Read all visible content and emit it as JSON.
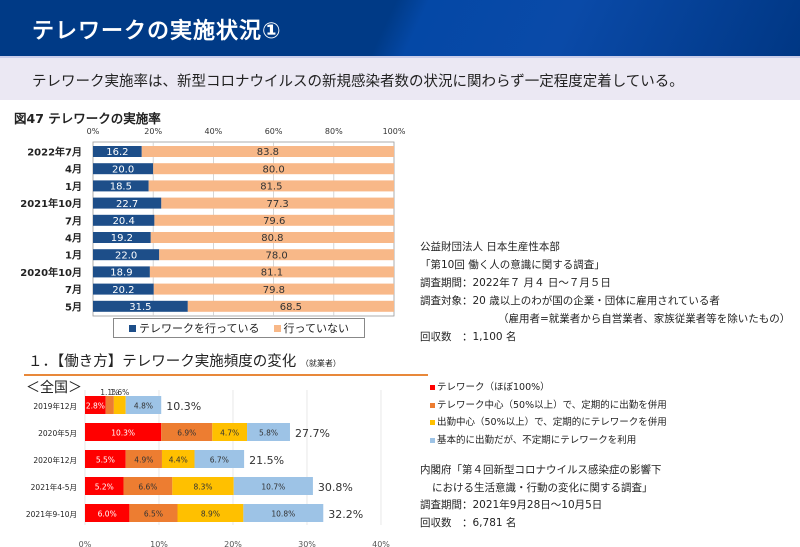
{
  "header": {
    "title": "テレワークの実施状況①"
  },
  "subhead": {
    "text": "テレワーク実施率は、新型コロナウイルスの新規感染者数の状況に関わらず一定程度定着している。"
  },
  "figure1": {
    "title": "図47 テレワークの実施率"
  },
  "legend1": [
    {
      "label": "テレワークを行っている",
      "color": "#1d4e89"
    },
    {
      "label": "行っていない",
      "color": "#f8b888"
    }
  ],
  "source1": {
    "org": "公益財団法人 日本生産性本部",
    "survey": "「第10回 働く人の意識に関する調査」",
    "period": "調査期間：2022年７ 月４ 日～７月５日",
    "target": "調査対象：20 歳以上のわが国の企業・団体に雇用されている者",
    "target_note": "（雇用者=就業者から自営業者、家族従業者等を除いたもの）",
    "responses": "回収数　：1,100 名"
  },
  "section2": {
    "title": "１．【働き方】テレワーク実施頻度の変化",
    "title_note": "（就業者）",
    "region": "＜全国＞"
  },
  "legend2": [
    {
      "label": "テレワーク（ほぼ100%）",
      "color": "#ff0000"
    },
    {
      "label": "テレワーク中心（50%以上）で、定期的に出勤を併用",
      "color": "#ed7d31"
    },
    {
      "label": "出勤中心（50%以上）で、定期的にテレワークを併用",
      "color": "#ffc000"
    },
    {
      "label": "基本的に出勤だが、不定期にテレワークを利用",
      "color": "#9dc3e6"
    }
  ],
  "source2": {
    "survey_line1": "内閣府「第４回新型コロナウイルス感染症の影響下",
    "survey_line2": "における生活意識・行動の変化に関する調査」",
    "period": "調査期間：2021年9月28日～10月5日",
    "responses": "回収数　：6,781 名"
  },
  "chart_data": [
    {
      "type": "bar",
      "orientation": "horizontal",
      "stacked": true,
      "title": "図47 テレワークの実施率",
      "categories": [
        "2022年7月",
        "4月",
        "1月",
        "2021年10月",
        "7月",
        "4月",
        "1月",
        "2020年10月",
        "7月",
        "5月"
      ],
      "series": [
        {
          "name": "テレワークを行っている",
          "color": "#1d4e89",
          "values": [
            16.2,
            20.0,
            18.5,
            22.7,
            20.4,
            19.2,
            22.0,
            18.9,
            20.2,
            31.5
          ]
        },
        {
          "name": "行っていない",
          "color": "#f8b888",
          "values": [
            83.8,
            80.0,
            81.5,
            77.3,
            79.6,
            80.8,
            78.0,
            81.1,
            79.8,
            68.5
          ]
        }
      ],
      "xticks": [
        "0%",
        "20%",
        "40%",
        "60%",
        "80%",
        "100%"
      ],
      "xlim": [
        0,
        100
      ],
      "grid": true,
      "legend": "bottom"
    },
    {
      "type": "bar",
      "orientation": "horizontal",
      "stacked": true,
      "title": "テレワーク実施頻度の変化",
      "categories": [
        "2019年12月",
        "2020年5月",
        "2020年12月",
        "2021年4-5月",
        "2021年9-10月"
      ],
      "series": [
        {
          "name": "テレワーク（ほぼ100%）",
          "color": "#ff0000",
          "values": [
            2.8,
            10.3,
            5.5,
            5.2,
            6.0
          ]
        },
        {
          "name": "テレワーク中心（50%以上）で、定期的に出勤を併用",
          "color": "#ed7d31",
          "values": [
            1.1,
            6.9,
            4.9,
            6.6,
            6.5
          ]
        },
        {
          "name": "出勤中心（50%以上）で、定期的にテレワークを併用",
          "color": "#ffc000",
          "values": [
            1.6,
            4.7,
            4.4,
            8.3,
            8.9
          ]
        },
        {
          "name": "基本的に出勤だが、不定期にテレワークを利用",
          "color": "#9dc3e6",
          "values": [
            4.8,
            5.8,
            6.7,
            10.7,
            10.8
          ]
        }
      ],
      "value_labels": [
        [
          "2.8%",
          "1.1%",
          "1.6%",
          "4.8%"
        ],
        [
          "10.3%",
          "6.9%",
          "4.7%",
          "5.8%"
        ],
        [
          "5.5%",
          "4.9%",
          "4.4%",
          "6.7%"
        ],
        [
          "5.2%",
          "6.6%",
          "8.3%",
          "10.7%"
        ],
        [
          "6.0%",
          "6.5%",
          "8.9%",
          "10.8%"
        ]
      ],
      "totals": [
        "10.3%",
        "27.7%",
        "21.5%",
        "30.8%",
        "32.2%"
      ],
      "xticks": [
        "0%",
        "10%",
        "20%",
        "30%",
        "40%"
      ],
      "xlim": [
        0,
        40
      ],
      "grid": true,
      "legend": "right"
    }
  ]
}
